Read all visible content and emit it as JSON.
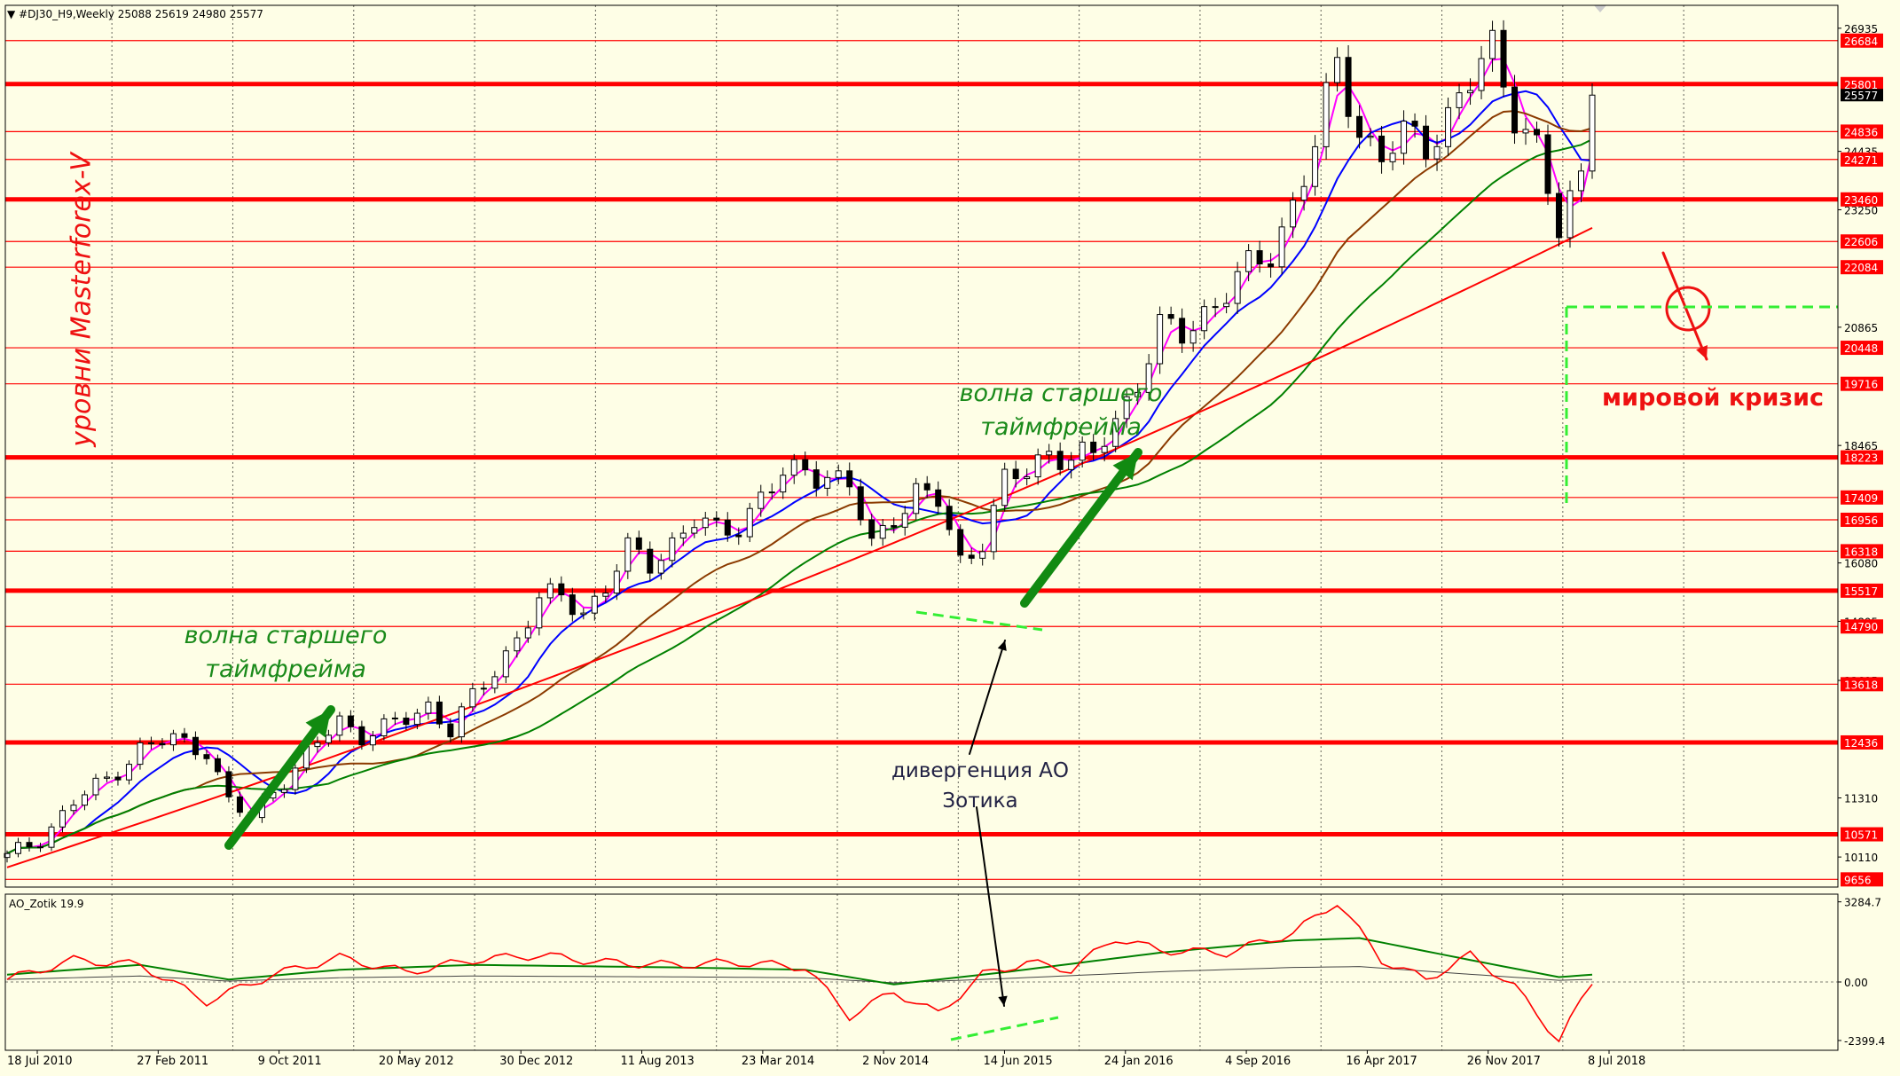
{
  "header": {
    "symbol_line": "#DJ30_H9,Weekly  25088 25619 24980 25577",
    "indicator_line": "AO_Zotik 19.9"
  },
  "annotations": {
    "watermark": "уровни Masterforex-V",
    "wave_left": [
      "волна старшего",
      "таймфрейма"
    ],
    "wave_right": [
      "волна старшего",
      "таймфрейма"
    ],
    "crisis": "мировой кризис",
    "divergence": [
      "дивергенция АО",
      "Зотика"
    ]
  },
  "colors": {
    "background": "#fefee6",
    "level_line": "#ff0000",
    "level_label_bg": "#ff0000",
    "ma_fast": "#ff00ff",
    "ma_blue": "#0000ff",
    "ma_brown": "#8b3a00",
    "ma_green": "#008000",
    "ma_red": "#ff0000",
    "arrow_green": "#118a11",
    "wave_text": "#1a8a1a",
    "divergence_text": "#222244",
    "dashed_green": "#33ee33"
  },
  "chart_data": {
    "type": "candlestick",
    "title": "#DJ30_H9,Weekly",
    "ohlc_last": {
      "open": 25088,
      "high": 25619,
      "low": 24980,
      "close": 25577
    },
    "price_ylim": [
      9500,
      27400
    ],
    "price_ticks": [
      26935,
      24435,
      23250,
      20865,
      18465,
      16080,
      14895,
      13695,
      11310,
      10110
    ],
    "current_price_label": "25577",
    "x_tick_labels": [
      "18 Jul 2010",
      "27 Feb 2011",
      "9 Oct 2011",
      "20 May 2012",
      "30 Dec 2012",
      "11 Aug 2013",
      "23 Mar 2014",
      "2 Nov 2014",
      "14 Jun 2015",
      "24 Jan 2016",
      "4 Sep 2016",
      "16 Apr 2017",
      "26 Nov 2017",
      "8 Jul 2018"
    ],
    "levels": [
      {
        "value": 26684,
        "bold": false
      },
      {
        "value": 25801,
        "bold": true
      },
      {
        "value": 24836,
        "bold": false
      },
      {
        "value": 24271,
        "bold": false
      },
      {
        "value": 23460,
        "bold": true
      },
      {
        "value": 22606,
        "bold": false
      },
      {
        "value": 22084,
        "bold": false
      },
      {
        "value": 20448,
        "bold": false
      },
      {
        "value": 19716,
        "bold": false
      },
      {
        "value": 18223,
        "bold": true
      },
      {
        "value": 17409,
        "bold": false
      },
      {
        "value": 16956,
        "bold": false
      },
      {
        "value": 16318,
        "bold": false
      },
      {
        "value": 15517,
        "bold": true
      },
      {
        "value": 14790,
        "bold": false
      },
      {
        "value": 13618,
        "bold": false
      },
      {
        "value": 12436,
        "bold": true
      },
      {
        "value": 10571,
        "bold": true
      },
      {
        "value": 9656,
        "bold": false
      }
    ],
    "close_series": [
      {
        "x": 0,
        "y": 10100
      },
      {
        "x": 3,
        "y": 10500
      },
      {
        "x": 6,
        "y": 11200
      },
      {
        "x": 9,
        "y": 11700
      },
      {
        "x": 12,
        "y": 12300
      },
      {
        "x": 15,
        "y": 12500
      },
      {
        "x": 18,
        "y": 12300
      },
      {
        "x": 20,
        "y": 11200
      },
      {
        "x": 22,
        "y": 10900
      },
      {
        "x": 24,
        "y": 11500
      },
      {
        "x": 26,
        "y": 11900
      },
      {
        "x": 28,
        "y": 12400
      },
      {
        "x": 30,
        "y": 12900
      },
      {
        "x": 32,
        "y": 12600
      },
      {
        "x": 34,
        "y": 12700
      },
      {
        "x": 36,
        "y": 12900
      },
      {
        "x": 38,
        "y": 13200
      },
      {
        "x": 40,
        "y": 12700
      },
      {
        "x": 42,
        "y": 13300
      },
      {
        "x": 44,
        "y": 13900
      },
      {
        "x": 46,
        "y": 14600
      },
      {
        "x": 48,
        "y": 15300
      },
      {
        "x": 50,
        "y": 15400
      },
      {
        "x": 52,
        "y": 15100
      },
      {
        "x": 54,
        "y": 15600
      },
      {
        "x": 56,
        "y": 16300
      },
      {
        "x": 58,
        "y": 16100
      },
      {
        "x": 60,
        "y": 16500
      },
      {
        "x": 62,
        "y": 16900
      },
      {
        "x": 64,
        "y": 16700
      },
      {
        "x": 66,
        "y": 16900
      },
      {
        "x": 68,
        "y": 17400
      },
      {
        "x": 70,
        "y": 17800
      },
      {
        "x": 72,
        "y": 18000
      },
      {
        "x": 74,
        "y": 17900
      },
      {
        "x": 76,
        "y": 17600
      },
      {
        "x": 78,
        "y": 16400
      },
      {
        "x": 80,
        "y": 17100
      },
      {
        "x": 82,
        "y": 17500
      },
      {
        "x": 84,
        "y": 17300
      },
      {
        "x": 86,
        "y": 16100
      },
      {
        "x": 88,
        "y": 16600
      },
      {
        "x": 90,
        "y": 17700
      },
      {
        "x": 92,
        "y": 17900
      },
      {
        "x": 94,
        "y": 18400
      },
      {
        "x": 96,
        "y": 18200
      },
      {
        "x": 98,
        "y": 18200
      },
      {
        "x": 100,
        "y": 19000
      },
      {
        "x": 102,
        "y": 19800
      },
      {
        "x": 104,
        "y": 20800
      },
      {
        "x": 106,
        "y": 20700
      },
      {
        "x": 108,
        "y": 21200
      },
      {
        "x": 110,
        "y": 21600
      },
      {
        "x": 112,
        "y": 22000
      },
      {
        "x": 114,
        "y": 22400
      },
      {
        "x": 116,
        "y": 23400
      },
      {
        "x": 118,
        "y": 24500
      },
      {
        "x": 120,
        "y": 26200
      },
      {
        "x": 122,
        "y": 24900
      },
      {
        "x": 124,
        "y": 24300
      },
      {
        "x": 126,
        "y": 24700
      },
      {
        "x": 128,
        "y": 24600
      },
      {
        "x": 130,
        "y": 25200
      },
      {
        "x": 132,
        "y": 25800
      },
      {
        "x": 134,
        "y": 26500
      },
      {
        "x": 136,
        "y": 25300
      },
      {
        "x": 138,
        "y": 24500
      },
      {
        "x": 140,
        "y": 22700
      },
      {
        "x": 142,
        "y": 24000
      },
      {
        "x": 143,
        "y": 25577
      }
    ],
    "indicator": {
      "name": "AO_Zotik 19.9",
      "ylim": [
        -2800,
        3600
      ],
      "ticks": [
        3284.7,
        0.0,
        -2399.4
      ],
      "main": [
        {
          "x": 0,
          "y": 100
        },
        {
          "x": 6,
          "y": 900
        },
        {
          "x": 12,
          "y": 700
        },
        {
          "x": 18,
          "y": -800
        },
        {
          "x": 24,
          "y": 300
        },
        {
          "x": 30,
          "y": 1000
        },
        {
          "x": 36,
          "y": 400
        },
        {
          "x": 42,
          "y": 900
        },
        {
          "x": 48,
          "y": 1100
        },
        {
          "x": 54,
          "y": 800
        },
        {
          "x": 60,
          "y": 700
        },
        {
          "x": 66,
          "y": 800
        },
        {
          "x": 72,
          "y": 600
        },
        {
          "x": 76,
          "y": -1400
        },
        {
          "x": 80,
          "y": -400
        },
        {
          "x": 84,
          "y": -1300
        },
        {
          "x": 88,
          "y": 300
        },
        {
          "x": 92,
          "y": 800
        },
        {
          "x": 96,
          "y": 500
        },
        {
          "x": 100,
          "y": 1800
        },
        {
          "x": 104,
          "y": 1300
        },
        {
          "x": 110,
          "y": 1200
        },
        {
          "x": 116,
          "y": 2000
        },
        {
          "x": 120,
          "y": 3284.7
        },
        {
          "x": 124,
          "y": 900
        },
        {
          "x": 128,
          "y": 100
        },
        {
          "x": 132,
          "y": 1100
        },
        {
          "x": 136,
          "y": -200
        },
        {
          "x": 140,
          "y": -2399.4
        },
        {
          "x": 143,
          "y": 0
        }
      ],
      "signal": [
        {
          "x": 0,
          "y": 300
        },
        {
          "x": 12,
          "y": 700
        },
        {
          "x": 20,
          "y": 100
        },
        {
          "x": 30,
          "y": 500
        },
        {
          "x": 42,
          "y": 700
        },
        {
          "x": 60,
          "y": 600
        },
        {
          "x": 72,
          "y": 500
        },
        {
          "x": 80,
          "y": -100
        },
        {
          "x": 90,
          "y": 400
        },
        {
          "x": 104,
          "y": 1200
        },
        {
          "x": 116,
          "y": 1700
        },
        {
          "x": 122,
          "y": 1800
        },
        {
          "x": 132,
          "y": 900
        },
        {
          "x": 140,
          "y": 200
        },
        {
          "x": 143,
          "y": 300
        }
      ]
    }
  }
}
